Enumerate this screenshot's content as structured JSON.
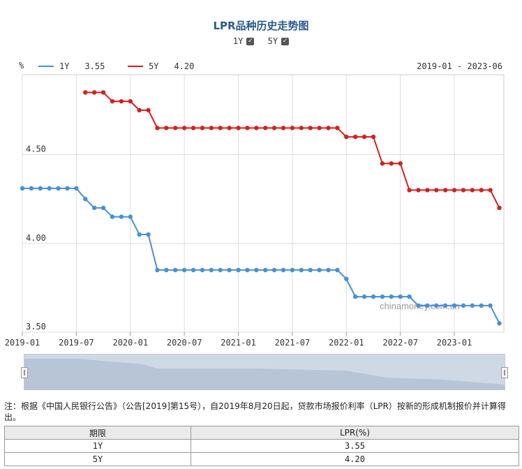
{
  "title": "LPR品种历史走势图",
  "toggles": [
    {
      "label": "1Y",
      "checked": true
    },
    {
      "label": "5Y",
      "checked": true
    }
  ],
  "unit": "%",
  "legend": [
    {
      "name": "1Y",
      "value": "3.55",
      "color": "#4a8fd6"
    },
    {
      "name": "5Y",
      "value": "4.20",
      "color": "#d42020"
    }
  ],
  "date_range": "2019-01 - 2023-06",
  "watermark": "chinamoney.com.cn",
  "chart_data": {
    "type": "line",
    "x_labels": [
      "2019-01",
      "2019-07",
      "2020-01",
      "2020-07",
      "2021-01",
      "2021-07",
      "2022-01",
      "2022-07",
      "2023-01"
    ],
    "y_ticks": [
      "3.50",
      "4.00",
      "4.50"
    ],
    "ylim": [
      3.5,
      4.95
    ],
    "xlim": [
      0,
      53.5
    ],
    "grid": true,
    "series": [
      {
        "name": "1Y",
        "color": "#4a8fd6",
        "x_start": 0,
        "values": [
          4.31,
          4.31,
          4.31,
          4.31,
          4.31,
          4.31,
          4.31,
          4.25,
          4.2,
          4.2,
          4.15,
          4.15,
          4.15,
          4.05,
          4.05,
          3.85,
          3.85,
          3.85,
          3.85,
          3.85,
          3.85,
          3.85,
          3.85,
          3.85,
          3.85,
          3.85,
          3.85,
          3.85,
          3.85,
          3.85,
          3.85,
          3.85,
          3.85,
          3.85,
          3.85,
          3.85,
          3.8,
          3.7,
          3.7,
          3.7,
          3.7,
          3.7,
          3.7,
          3.7,
          3.65,
          3.65,
          3.65,
          3.65,
          3.65,
          3.65,
          3.65,
          3.65,
          3.65,
          3.55
        ]
      },
      {
        "name": "5Y",
        "color": "#d42020",
        "x_start": 7,
        "values": [
          4.85,
          4.85,
          4.85,
          4.8,
          4.8,
          4.8,
          4.75,
          4.75,
          4.65,
          4.65,
          4.65,
          4.65,
          4.65,
          4.65,
          4.65,
          4.65,
          4.65,
          4.65,
          4.65,
          4.65,
          4.65,
          4.65,
          4.65,
          4.65,
          4.65,
          4.65,
          4.65,
          4.65,
          4.65,
          4.6,
          4.6,
          4.6,
          4.6,
          4.45,
          4.45,
          4.45,
          4.3,
          4.3,
          4.3,
          4.3,
          4.3,
          4.3,
          4.3,
          4.3,
          4.3,
          4.3,
          4.2
        ]
      }
    ]
  },
  "note": "注：根据《中国人民银行公告》（公告[2019]第15号），自2019年8月20日起，贷款市场报价利率（LPR）按新的形成机制报价并计算得出。",
  "table": {
    "headers": [
      "期限",
      "LPR(%)"
    ],
    "rows": [
      [
        "1Y",
        "3.55"
      ],
      [
        "5Y",
        "4.20"
      ]
    ]
  }
}
